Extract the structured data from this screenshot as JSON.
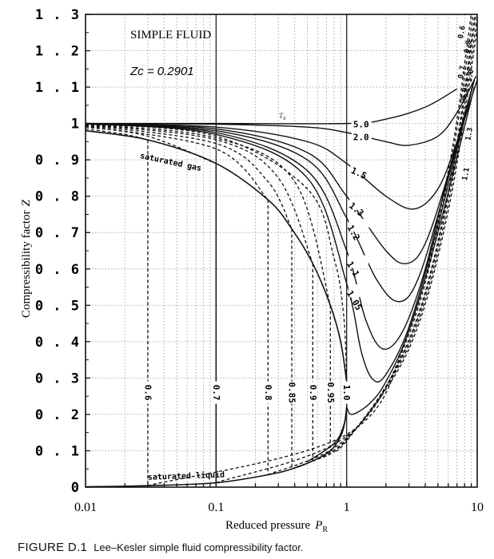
{
  "caption": {
    "figure_label": "FIGURE D.1",
    "text": "Lee–Kesler simple fluid compressibility factor."
  },
  "chart_data": {
    "type": "line",
    "title": "SIMPLE FLUID",
    "annotation_zc": "Zc = 0.2901",
    "tr_label": "T",
    "tr_sub": "R",
    "xlabel": "Reduced pressure",
    "xlabel_symbol": "P",
    "xlabel_sub": "R",
    "ylabel": "Compressibility factor",
    "ylabel_symbol": "Z",
    "xscale": "log",
    "xlim": [
      0.01,
      10
    ],
    "ylim": [
      0,
      1.3
    ],
    "grid": true,
    "xticks": [
      {
        "v": 0.01,
        "label": "0.01"
      },
      {
        "v": 0.1,
        "label": "0.1"
      },
      {
        "v": 1,
        "label": "1"
      },
      {
        "v": 10,
        "label": "10"
      }
    ],
    "yticks": [
      {
        "v": 0,
        "label": "0"
      },
      {
        "v": 0.1,
        "label": "0.1"
      },
      {
        "v": 0.2,
        "label": "0.2"
      },
      {
        "v": 0.3,
        "label": "0.3"
      },
      {
        "v": 0.4,
        "label": "0.4"
      },
      {
        "v": 0.5,
        "label": "0.5"
      },
      {
        "v": 0.6,
        "label": "0.6"
      },
      {
        "v": 0.7,
        "label": "0.7"
      },
      {
        "v": 0.8,
        "label": "0.8"
      },
      {
        "v": 0.9,
        "label": "0.9"
      },
      {
        "v": 1,
        "label": "1"
      },
      {
        "v": 1.1,
        "label": "1.1"
      },
      {
        "v": 1.2,
        "label": "1.2"
      },
      {
        "v": 1.3,
        "label": "1.3"
      }
    ],
    "saturation": [
      {
        "name": "saturated gas",
        "points": [
          [
            0.01,
            0.98
          ],
          [
            0.03,
            0.955
          ],
          [
            0.1,
            0.89
          ],
          [
            0.25,
            0.79
          ],
          [
            0.38,
            0.71
          ],
          [
            0.55,
            0.615
          ],
          [
            0.75,
            0.5
          ],
          [
            0.9,
            0.4
          ],
          [
            1,
            0.29
          ]
        ],
        "label_at": [
          0.026,
          0.905
        ]
      },
      {
        "name": "saturated liquid",
        "points": [
          [
            0.01,
            0.001
          ],
          [
            0.03,
            0.004
          ],
          [
            0.1,
            0.012
          ],
          [
            0.25,
            0.034
          ],
          [
            0.38,
            0.05
          ],
          [
            0.55,
            0.072
          ],
          [
            0.75,
            0.1
          ],
          [
            0.9,
            0.14
          ],
          [
            0.97,
            0.18
          ],
          [
            1,
            0.22
          ]
        ],
        "label_at": [
          0.03,
          0.02
        ]
      }
    ],
    "supercritical": [
      {
        "tr": "5.0",
        "points": [
          [
            0.01,
            1.0
          ],
          [
            0.1,
            1.0
          ],
          [
            1,
            1.0
          ],
          [
            2,
            1.012
          ],
          [
            4,
            1.045
          ],
          [
            7,
            1.095
          ]
        ],
        "label_at": [
          1.12,
          1.0
        ]
      },
      {
        "tr": "2.0",
        "points": [
          [
            0.01,
            1.0
          ],
          [
            0.1,
            0.998
          ],
          [
            0.5,
            0.99
          ],
          [
            1,
            0.975
          ],
          [
            2,
            0.95
          ],
          [
            3,
            0.94
          ],
          [
            5,
            0.965
          ],
          [
            7,
            1.03
          ],
          [
            9.8,
            1.13
          ]
        ],
        "label_at": [
          1.12,
          0.965
        ]
      },
      {
        "tr": "1.5",
        "points": [
          [
            0.01,
            1.0
          ],
          [
            0.1,
            0.99
          ],
          [
            0.5,
            0.95
          ],
          [
            1,
            0.89
          ],
          [
            2,
            0.8
          ],
          [
            3.3,
            0.765
          ],
          [
            5,
            0.82
          ],
          [
            7,
            0.95
          ],
          [
            10,
            1.12
          ]
        ],
        "label_at": [
          1.1,
          0.875
        ]
      },
      {
        "tr": "1.3",
        "points": [
          [
            0.01,
            1.0
          ],
          [
            0.1,
            0.985
          ],
          [
            0.5,
            0.92
          ],
          [
            1,
            0.8
          ],
          [
            2,
            0.65
          ],
          [
            2.9,
            0.615
          ],
          [
            4,
            0.67
          ],
          [
            6,
            0.86
          ],
          [
            9.5,
            1.12
          ]
        ],
        "label_at": [
          1.08,
          0.78
        ]
      },
      {
        "tr": "1.2",
        "points": [
          [
            0.01,
            1.0
          ],
          [
            0.1,
            0.98
          ],
          [
            0.5,
            0.9
          ],
          [
            1,
            0.74
          ],
          [
            1.7,
            0.57
          ],
          [
            2.5,
            0.51
          ],
          [
            3.5,
            0.57
          ],
          [
            5.5,
            0.8
          ],
          [
            9.5,
            1.12
          ]
        ],
        "label_at": [
          1.07,
          0.72
        ]
      },
      {
        "tr": "1.1",
        "points": [
          [
            0.01,
            0.999
          ],
          [
            0.1,
            0.975
          ],
          [
            0.5,
            0.87
          ],
          [
            1,
            0.65
          ],
          [
            1.4,
            0.46
          ],
          [
            1.9,
            0.38
          ],
          [
            2.7,
            0.43
          ],
          [
            4,
            0.6
          ],
          [
            6,
            0.86
          ],
          [
            9.5,
            1.12
          ]
        ],
        "label_at": [
          1.06,
          0.62
        ]
      },
      {
        "tr": "1.05",
        "points": [
          [
            0.01,
            0.999
          ],
          [
            0.1,
            0.97
          ],
          [
            0.5,
            0.85
          ],
          [
            1,
            0.56
          ],
          [
            1.3,
            0.37
          ],
          [
            1.6,
            0.295
          ],
          [
            2,
            0.31
          ],
          [
            3,
            0.44
          ],
          [
            5,
            0.72
          ],
          [
            9.5,
            1.12
          ]
        ],
        "label_at": [
          1.06,
          0.54
        ]
      },
      {
        "tr": "1.0",
        "points": [
          [
            1,
            0.22
          ],
          [
            1.1,
            0.2
          ],
          [
            1.5,
            0.23
          ],
          [
            2,
            0.29
          ],
          [
            3,
            0.43
          ],
          [
            5,
            0.7
          ],
          [
            9.5,
            1.1
          ]
        ],
        "label_at": [
          1.0,
          0.27
        ]
      }
    ],
    "subcritical": [
      {
        "tr": "0.6",
        "psat": 0.03,
        "gas": [
          [
            0.01,
            0.985
          ],
          [
            0.02,
            0.97
          ],
          [
            0.03,
            0.955
          ]
        ],
        "z_liq": 0.004,
        "liquid": [
          [
            0.03,
            0.004
          ],
          [
            1,
            0.145
          ],
          [
            3,
            0.43
          ],
          [
            6,
            0.87
          ],
          [
            9,
            1.3
          ]
        ],
        "label_at": [
          0.03,
          0.26
        ]
      },
      {
        "tr": "0.7",
        "psat": 0.1,
        "gas": [
          [
            0.01,
            0.99
          ],
          [
            0.03,
            0.965
          ],
          [
            0.1,
            0.89
          ]
        ],
        "z_liq": 0.012,
        "liquid": [
          [
            0.1,
            0.012
          ],
          [
            1,
            0.14
          ],
          [
            3,
            0.42
          ],
          [
            6,
            0.85
          ],
          [
            9.3,
            1.3
          ]
        ],
        "label_at": [
          0.1,
          0.26
        ]
      },
      {
        "tr": "0.8",
        "psat": 0.25,
        "gas": [
          [
            0.01,
            0.993
          ],
          [
            0.1,
            0.93
          ],
          [
            0.25,
            0.79
          ]
        ],
        "z_liq": 0.034,
        "liquid": [
          [
            0.25,
            0.034
          ],
          [
            1,
            0.135
          ],
          [
            3,
            0.405
          ],
          [
            6,
            0.81
          ],
          [
            9.6,
            1.3
          ]
        ],
        "label_at": [
          0.25,
          0.26
        ]
      },
      {
        "tr": "0.85",
        "psat": 0.38,
        "gas": [
          [
            0.01,
            0.995
          ],
          [
            0.1,
            0.945
          ],
          [
            0.25,
            0.84
          ],
          [
            0.38,
            0.71
          ]
        ],
        "z_liq": 0.05,
        "liquid": [
          [
            0.38,
            0.05
          ],
          [
            1,
            0.132
          ],
          [
            3,
            0.4
          ],
          [
            6,
            0.8
          ],
          [
            9.8,
            1.3
          ]
        ],
        "label_at": [
          0.38,
          0.26
        ]
      },
      {
        "tr": "0.9",
        "psat": 0.55,
        "gas": [
          [
            0.01,
            0.996
          ],
          [
            0.1,
            0.955
          ],
          [
            0.3,
            0.85
          ],
          [
            0.55,
            0.615
          ]
        ],
        "z_liq": 0.072,
        "liquid": [
          [
            0.55,
            0.072
          ],
          [
            1,
            0.13
          ],
          [
            3,
            0.39
          ],
          [
            6,
            0.78
          ],
          [
            10,
            1.29
          ]
        ],
        "label_at": [
          0.55,
          0.26
        ]
      },
      {
        "tr": "0.95",
        "psat": 0.75,
        "gas": [
          [
            0.01,
            0.997
          ],
          [
            0.1,
            0.96
          ],
          [
            0.4,
            0.84
          ],
          [
            0.75,
            0.5
          ]
        ],
        "z_liq": 0.1,
        "liquid": [
          [
            0.75,
            0.1
          ],
          [
            1,
            0.127
          ],
          [
            3,
            0.38
          ],
          [
            6,
            0.76
          ],
          [
            10,
            1.26
          ]
        ],
        "label_at": [
          0.75,
          0.26
        ]
      },
      {
        "tr": "1.0",
        "psat": 1.0,
        "gas": [
          [
            0.01,
            0.998
          ],
          [
            0.1,
            0.965
          ],
          [
            0.5,
            0.82
          ],
          [
            0.8,
            0.63
          ],
          [
            0.95,
            0.47
          ],
          [
            1,
            0.29
          ]
        ],
        "z_liq": 0.22,
        "liquid": [
          [
            0.5,
            0.07
          ],
          [
            0.8,
            0.12
          ],
          [
            0.95,
            0.17
          ],
          [
            1,
            0.22
          ]
        ],
        "label_at": [
          1.0,
          0.26
        ]
      }
    ],
    "top_labels": [
      {
        "text": "0.6",
        "at": [
          7.9,
          1.25
        ]
      },
      {
        "text": "0.7",
        "at": [
          7.9,
          1.14
        ]
      },
      {
        "text": "0.8",
        "at": [
          8.8,
          1.21
        ]
      },
      {
        "text": "0.9",
        "at": [
          8.3,
          1.08
        ]
      },
      {
        "text": "1.0",
        "at": [
          9.2,
          1.13
        ]
      },
      {
        "text": "1.3",
        "at": [
          9.0,
          0.97
        ]
      },
      {
        "text": "1.1",
        "at": [
          8.5,
          0.86
        ]
      }
    ]
  }
}
